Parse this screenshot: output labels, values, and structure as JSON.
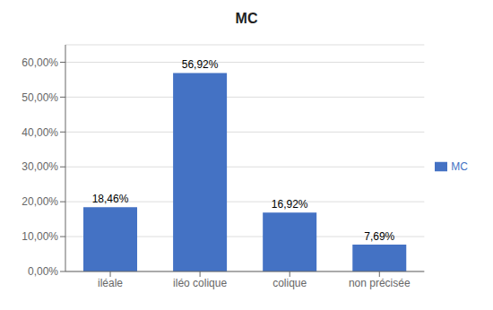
{
  "chart_data": {
    "type": "bar",
    "title": "MC",
    "categories": [
      "iléale",
      "iléo colique",
      "colique",
      "non précisée"
    ],
    "series": [
      {
        "name": "MC",
        "color": "#4472C4",
        "values": [
          0.1846,
          0.5692,
          0.1692,
          0.0769
        ],
        "value_labels": [
          "18,46%",
          "56,92%",
          "16,92%",
          "7,69%"
        ]
      }
    ],
    "ylim": [
      0,
      0.65
    ],
    "yticks": [
      {
        "value": 0.0,
        "label": "0,00%"
      },
      {
        "value": 0.1,
        "label": "10,00%"
      },
      {
        "value": 0.2,
        "label": "20,00%"
      },
      {
        "value": 0.3,
        "label": "30,00%"
      },
      {
        "value": 0.4,
        "label": "40,00%"
      },
      {
        "value": 0.5,
        "label": "50,00%"
      },
      {
        "value": 0.6,
        "label": "60,00%"
      }
    ],
    "grid": true,
    "legend": "right",
    "data_labels": true
  }
}
